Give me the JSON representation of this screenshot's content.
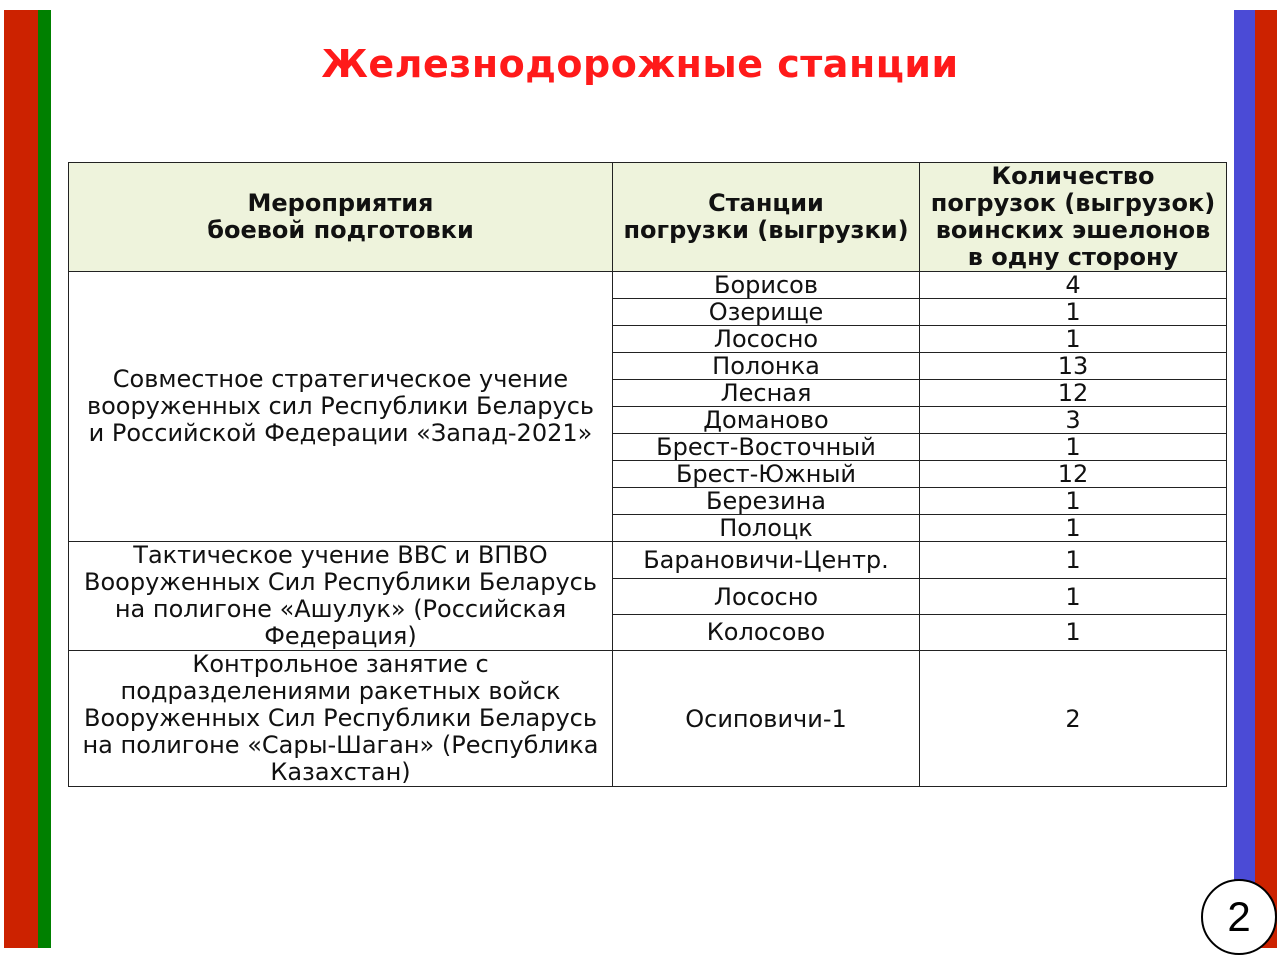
{
  "title": "Железнодорожные станции",
  "page_number": "2",
  "colors": {
    "flag_red": "#cc2200",
    "flag_green": "#008000",
    "flag_blue": "#4b4bd6",
    "title_red": "#ff1a1a",
    "header_bg": "#eef3dc"
  },
  "table": {
    "headers": [
      "Мероприятия\nбоевой подготовки",
      "Станции\nпогрузки (выгрузки)",
      "Количество\nпогрузок (выгрузок)\nвоинских эшелонов\nв одну сторону"
    ],
    "groups": [
      {
        "event": "Совместное стратегическое учение вооруженных сил Республики Беларусь и Российской Федерации «Запад-2021»",
        "rows": [
          [
            "Борисов",
            "4"
          ],
          [
            "Озерище",
            "1"
          ],
          [
            "Лососно",
            "1"
          ],
          [
            "Полонка",
            "13"
          ],
          [
            "Лесная",
            "12"
          ],
          [
            "Доманово",
            "3"
          ],
          [
            "Брест-Восточный",
            "1"
          ],
          [
            "Брест-Южный",
            "12"
          ],
          [
            "Березина",
            "1"
          ],
          [
            "Полоцк",
            "1"
          ]
        ]
      },
      {
        "event": "Тактическое учение ВВС и ВПВО Вооруженных Сил Республики Беларусь на полигоне «Ашулук» (Российская Федерация)",
        "rows": [
          [
            "Барановичи-Центр.",
            "1"
          ],
          [
            "Лососно",
            "1"
          ],
          [
            "Колосово",
            "1"
          ]
        ]
      },
      {
        "event": "Контрольное занятие с подразделениями ракетных войск Вооруженных Сил Республики Беларусь на полигоне «Сары-Шаган» (Республика Казахстан)",
        "rows": [
          [
            "Осиповичи-1",
            "2"
          ]
        ]
      }
    ]
  }
}
